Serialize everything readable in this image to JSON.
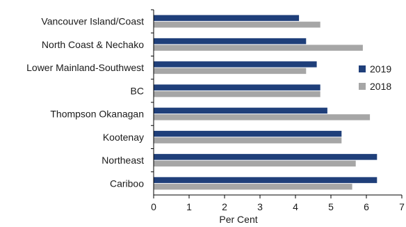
{
  "chart_data": {
    "type": "bar",
    "orientation": "horizontal",
    "title": "",
    "xlabel": "Per Cent",
    "ylabel": "",
    "categories": [
      "Vancouver Island/Coast",
      "North Coast & Nechako",
      "Lower Mainland-Southwest",
      "BC",
      "Thompson Okanagan",
      "Kootenay",
      "Northeast",
      "Cariboo"
    ],
    "series": [
      {
        "name": "2019",
        "color": "#1f3f7a",
        "values": [
          4.1,
          4.3,
          4.6,
          4.7,
          4.9,
          5.3,
          6.3,
          6.3
        ]
      },
      {
        "name": "2018",
        "color": "#a6a6a6",
        "values": [
          4.7,
          5.9,
          4.3,
          4.7,
          6.1,
          5.3,
          5.7,
          5.6
        ]
      }
    ],
    "xlim": [
      0,
      7
    ],
    "xticks": [
      "0",
      "1",
      "2",
      "3",
      "4",
      "5",
      "6",
      "7"
    ],
    "grid": false,
    "legend_position": "right"
  }
}
